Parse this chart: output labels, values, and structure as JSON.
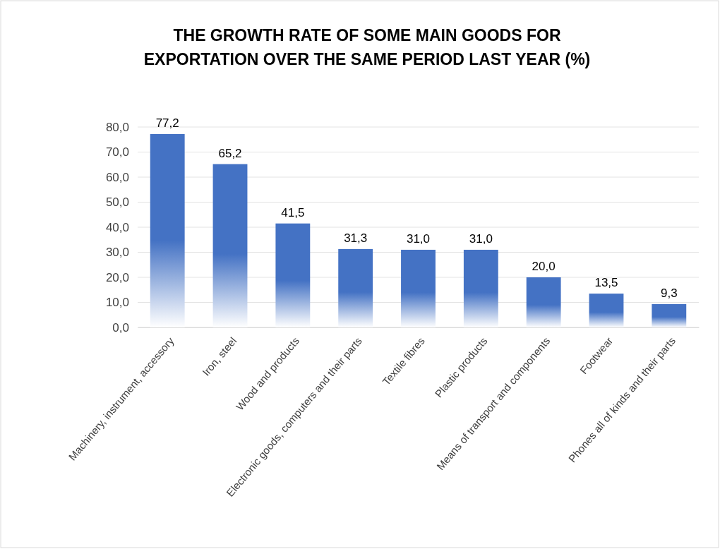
{
  "chart_data": {
    "type": "bar",
    "title": "THE GROWTH RATE OF SOME MAIN GOODS FOR EXPORTATION OVER THE SAME PERIOD LAST YEAR (%)",
    "categories": [
      "Machinery, instrument, accessory",
      "Iron, steel",
      "Wood and products",
      "Electronic goods, computers and their parts",
      "Textile fibres",
      "Plastic products",
      "Means of transport and components",
      "Footwear",
      "Phones all of kinds and their parts"
    ],
    "values": [
      77.2,
      65.2,
      41.5,
      31.3,
      31.0,
      31.0,
      20.0,
      13.5,
      9.3
    ],
    "value_labels": [
      "77,2",
      "65,2",
      "41,5",
      "31,3",
      "31,0",
      "31,0",
      "20,0",
      "13,5",
      "9,3"
    ],
    "color": "#4472c4",
    "ylim": [
      0,
      80
    ],
    "yticks": [
      {
        "value": 0,
        "label": "0,0"
      },
      {
        "value": 10,
        "label": "10,0"
      },
      {
        "value": 20,
        "label": "20,0"
      },
      {
        "value": 30,
        "label": "30,0"
      },
      {
        "value": 40,
        "label": "40,0"
      },
      {
        "value": 50,
        "label": "50,0"
      },
      {
        "value": 60,
        "label": "60,0"
      },
      {
        "value": 70,
        "label": "70,0"
      },
      {
        "value": 80,
        "label": "80,0"
      }
    ],
    "grid": "y"
  }
}
